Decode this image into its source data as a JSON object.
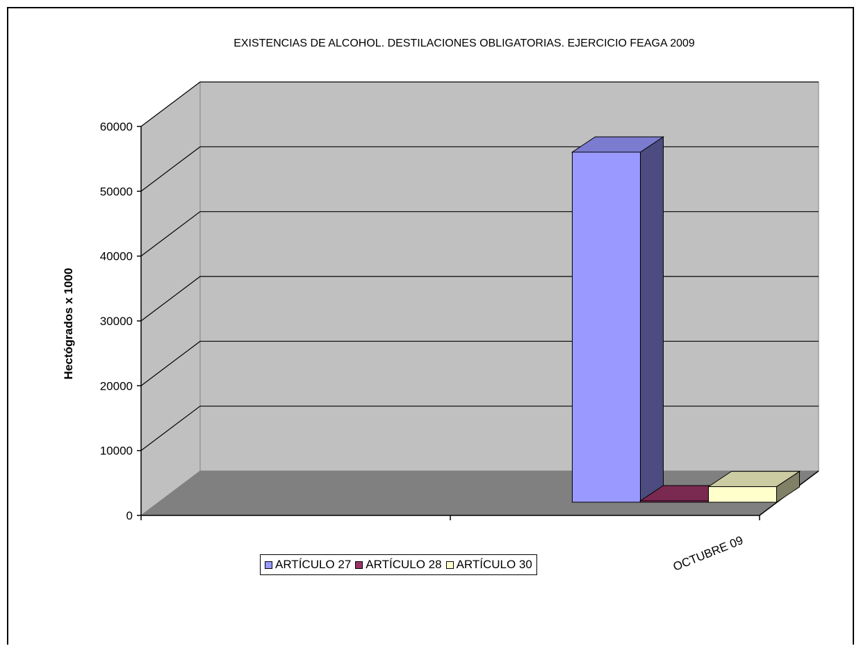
{
  "chart_data": {
    "type": "bar",
    "title": "EXISTENCIAS DE ALCOHOL. DESTILACIONES OBLIGATORIAS. EJERCICIO FEAGA 2009",
    "xlabel": "",
    "ylabel": "Hectógrados x 1000",
    "categories": [
      "",
      "OCTUBRE 09"
    ],
    "series": [
      {
        "name": "ARTÍCULO 27",
        "values": [
          null,
          54000
        ],
        "color": "#9999ff",
        "side_color": "#4c4c80",
        "top_color": "#7b7bd0"
      },
      {
        "name": "ARTÍCULO 28",
        "values": [
          null,
          100
        ],
        "color": "#993366",
        "side_color": "#4c1933",
        "top_color": "#7a2950"
      },
      {
        "name": "ARTÍCULO 30",
        "values": [
          null,
          2400
        ],
        "color": "#ffffcc",
        "side_color": "#808066",
        "top_color": "#cccca3"
      }
    ],
    "ylim": [
      0,
      60000
    ],
    "yticks": [
      0,
      10000,
      20000,
      30000,
      40000,
      50000,
      60000
    ],
    "grid": true,
    "legend_position": "bottom",
    "style": "3d",
    "colors": {
      "wall": "#c0c0c0",
      "floor": "#808080",
      "gridline": "#000000"
    }
  }
}
